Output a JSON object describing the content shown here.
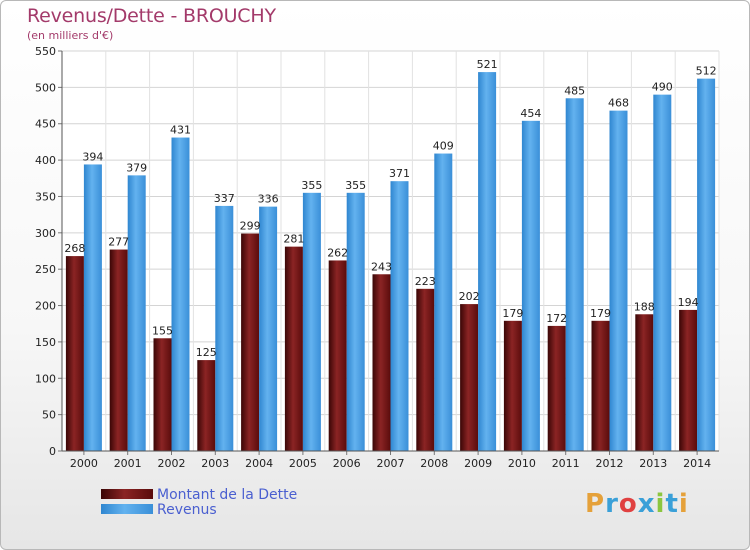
{
  "header": {
    "title": "Revenus/Dette - BROUCHY",
    "subtitle": "(en milliers d'€)"
  },
  "logo": {
    "text": "Proxiti",
    "letters": [
      "P",
      "r",
      "o",
      "x",
      "i",
      "t",
      "i"
    ],
    "colors": [
      "#e5a13a",
      "#3aa0d8",
      "#e04040",
      "#3aa0d8",
      "#8cc63f",
      "#3aa0d8",
      "#e5a13a"
    ]
  },
  "colors": {
    "dette": "#6e1414",
    "revenus": "#3f97df",
    "title": "#a33a6a",
    "legend_text": "#4a5fd0"
  },
  "chart_data": {
    "type": "bar",
    "title": "Revenus/Dette - BROUCHY",
    "subtitle": "(en milliers d'€)",
    "categories": [
      "2000",
      "2001",
      "2002",
      "2003",
      "2004",
      "2005",
      "2006",
      "2007",
      "2008",
      "2009",
      "2010",
      "2011",
      "2012",
      "2013",
      "2014"
    ],
    "series": [
      {
        "name": "Montant de la Dette",
        "values": [
          268,
          277,
          155,
          125,
          299,
          281,
          262,
          243,
          223,
          202,
          179,
          172,
          179,
          188,
          194
        ]
      },
      {
        "name": "Revenus",
        "values": [
          394,
          379,
          431,
          337,
          336,
          355,
          355,
          371,
          409,
          521,
          454,
          485,
          468,
          490,
          512
        ]
      }
    ],
    "ylim": [
      0,
      550
    ],
    "yticks": [
      0,
      50,
      100,
      150,
      200,
      250,
      300,
      350,
      400,
      450,
      500,
      550
    ],
    "xlabel": "",
    "ylabel": "",
    "grid": true,
    "legend": "bottom-left"
  }
}
